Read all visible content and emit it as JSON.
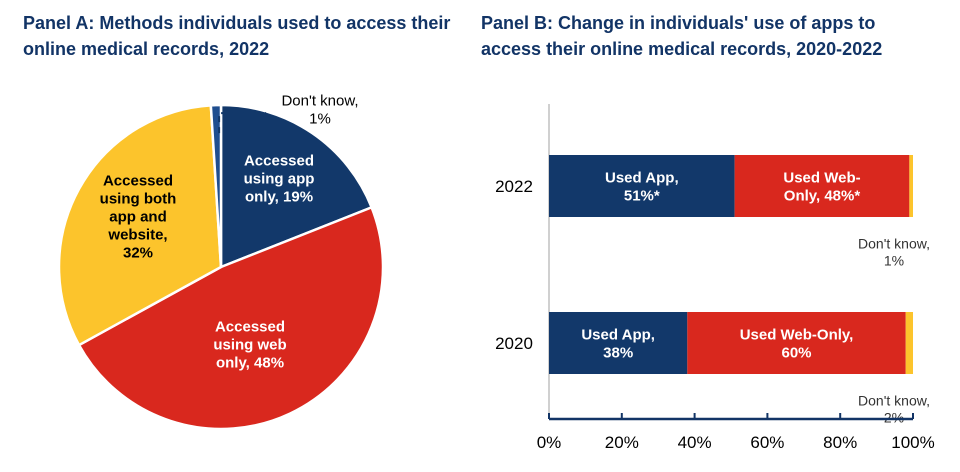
{
  "colors": {
    "navy": "#12386a",
    "red": "#d9281e",
    "yellow": "#fcc42c",
    "light_blue": "#1f4e8f",
    "title": "#123466",
    "axis": "#123466",
    "grid_axis": "#d0d0d0",
    "text_dark": "#000000",
    "text_white": "#ffffff",
    "text_gray": "#333333"
  },
  "chart_data": [
    {
      "type": "pie",
      "title": "Panel A: Methods individuals used to access their online medical records, 2022",
      "title_lines": [
        "Panel A: Methods individuals used to access their",
        "online medical records, 2022"
      ],
      "start": "12 o'clock, clockwise",
      "slices": [
        {
          "name": "Accessed using app only",
          "value": 19,
          "label_lines": [
            "Accessed",
            "using app",
            "only, 19%"
          ],
          "color": "#12386a",
          "label_color": "#ffffff"
        },
        {
          "name": "Accessed using web only",
          "value": 48,
          "label_lines": [
            "Accessed",
            "using web",
            "only, 48%"
          ],
          "color": "#d9281e",
          "label_color": "#ffffff"
        },
        {
          "name": "Accessed using both app and website",
          "value": 32,
          "label_lines": [
            "Accessed",
            "using both",
            "app and",
            "website,",
            "32%"
          ],
          "color": "#fcc42c",
          "label_color": "#000000"
        },
        {
          "name": "Don't know",
          "value": 1,
          "label_lines": [
            "Don't know,",
            "1%"
          ],
          "color": "#1f4e8f",
          "label_color": "#000000",
          "leader_line": "dashed"
        }
      ]
    },
    {
      "type": "bar",
      "orientation": "horizontal-stacked",
      "title": "Panel B: Change in individuals' use of apps to access their online medical records, 2020-2022",
      "title_lines": [
        "Panel B: Change in individuals' use of apps to",
        "access their online medical records, 2020-2022"
      ],
      "categories": [
        "2022",
        "2020"
      ],
      "series": [
        {
          "name": "Used App",
          "values": [
            51,
            38
          ],
          "color": "#12386a",
          "labels": [
            [
              "Used App,",
              "51%*"
            ],
            [
              "Used App,",
              "38%"
            ]
          ],
          "label_color": "#ffffff"
        },
        {
          "name": "Used Web-Only",
          "values": [
            48,
            60
          ],
          "color": "#d9281e",
          "labels": [
            [
              "Used Web-",
              "Only, 48%*"
            ],
            [
              "Used Web-Only,",
              "60%"
            ]
          ],
          "label_color": "#ffffff"
        },
        {
          "name": "Don't know",
          "values": [
            1,
            2
          ],
          "color": "#fcc42c",
          "labels": [
            [
              "Don't know,",
              "1%"
            ],
            [
              "Don't know,",
              "2%"
            ]
          ],
          "label_color": "#333333",
          "label_position": "below"
        }
      ],
      "xlim": [
        0,
        100
      ],
      "xticks": [
        "0%",
        "20%",
        "40%",
        "60%",
        "80%",
        "100%"
      ],
      "xlabel": "",
      "ylabel": "",
      "grid": false,
      "legend": "none"
    }
  ]
}
